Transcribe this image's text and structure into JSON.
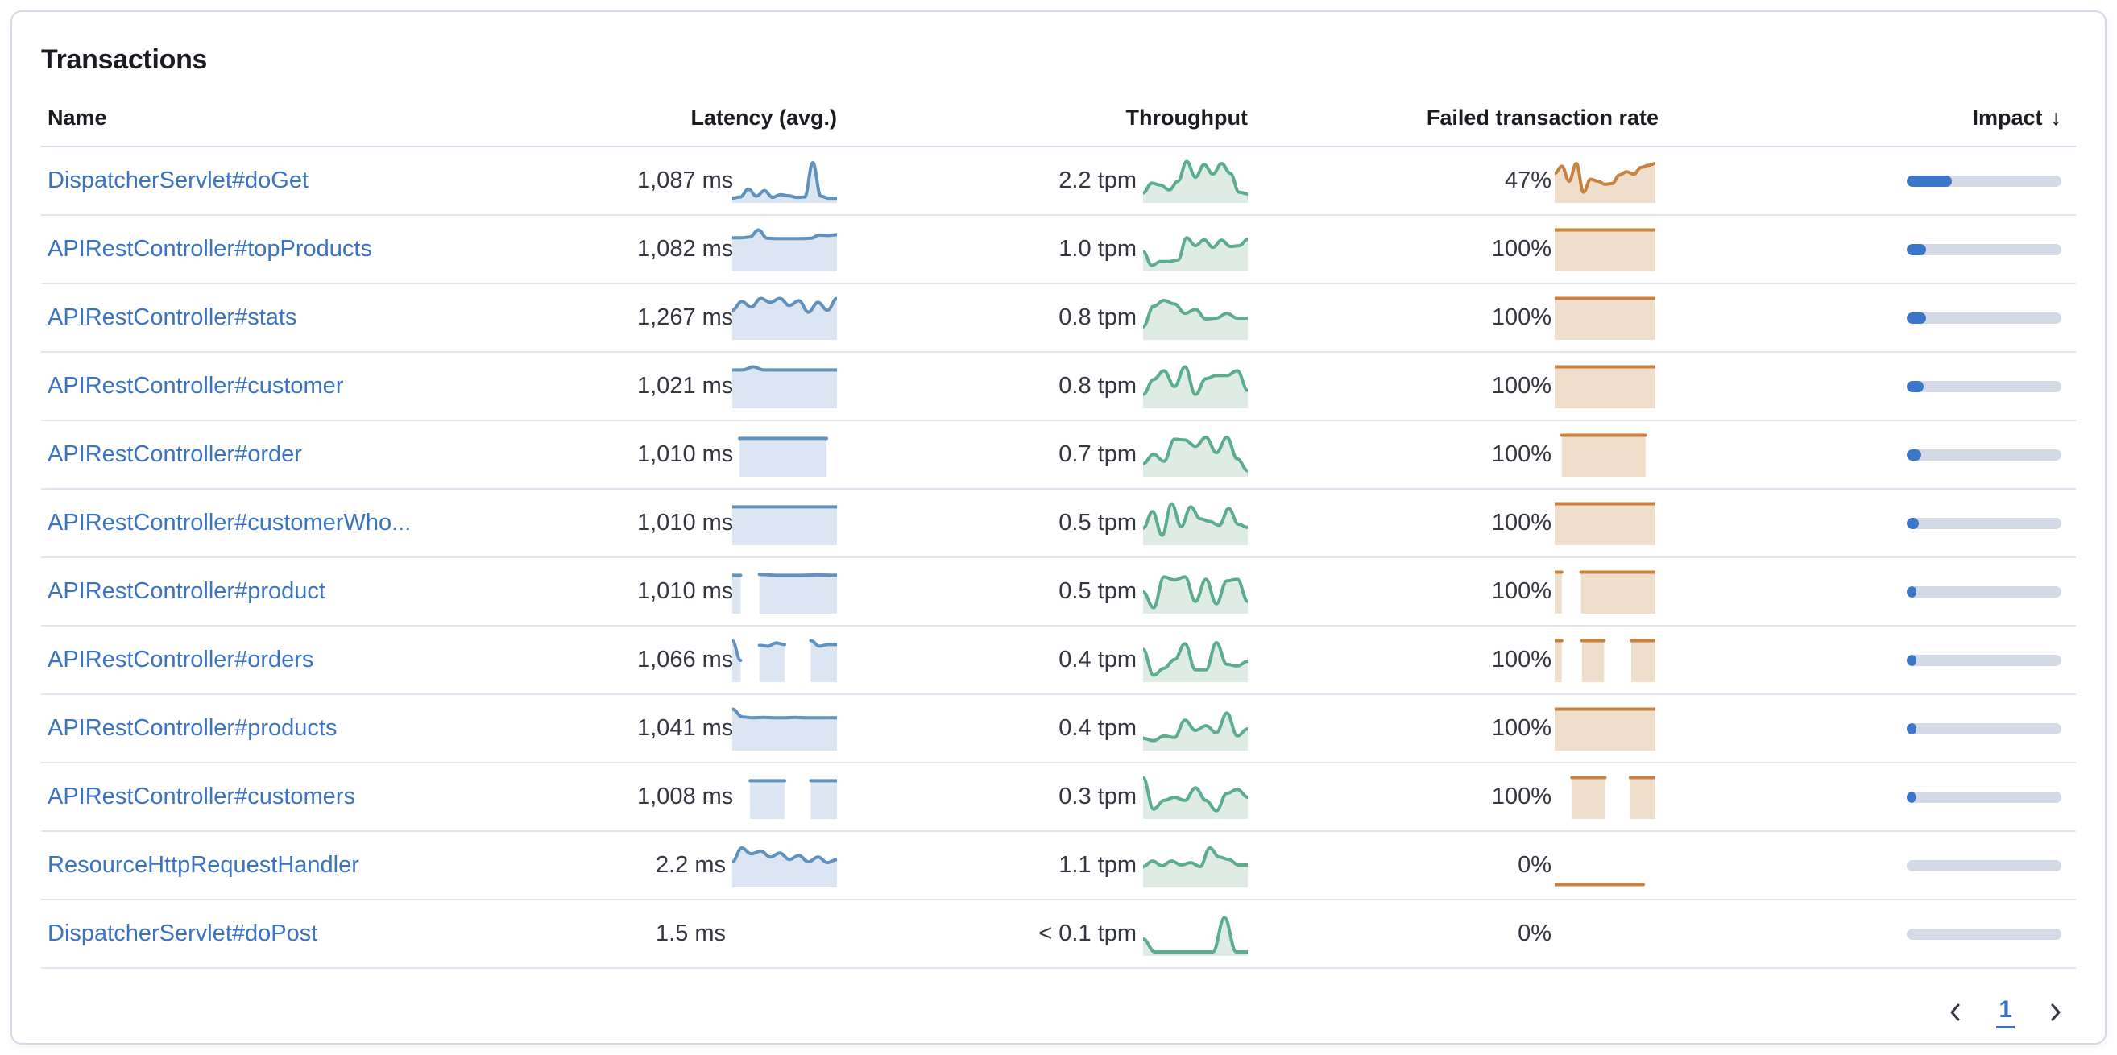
{
  "panel": {
    "title": "Transactions"
  },
  "table": {
    "columns": {
      "name": "Name",
      "latency": "Latency (avg.)",
      "throughput": "Throughput",
      "failed_rate": "Failed transaction rate",
      "impact": "Impact"
    },
    "sort": {
      "column": "Impact",
      "direction": "desc",
      "arrow": "↓"
    },
    "rows": [
      {
        "name": "DispatcherServlet#doGet",
        "latency": "1,087 ms",
        "throughput": "2.2 tpm",
        "failed_rate": "47%",
        "impact_pct": 29,
        "latency_spark": {
          "segments": [
            {
              "x": [
                0,
                1
              ],
              "y": [
                0.07,
                0.1,
                0.3,
                0.12,
                0.26,
                0.09,
                0.16,
                0.13,
                0.09,
                0.1,
                0.97,
                0.12,
                0.07,
                0.07
              ]
            }
          ]
        },
        "throughput_spark": {
          "segments": [
            {
              "x": [
                0,
                1
              ],
              "y": [
                0.2,
                0.45,
                0.4,
                0.28,
                0.5,
                1.0,
                0.6,
                0.92,
                0.68,
                0.95,
                0.7,
                0.22,
                0.18
              ]
            }
          ]
        },
        "failed_spark": {
          "segments": [
            {
              "x": [
                0,
                1
              ],
              "y": [
                0.7,
                0.88,
                0.5,
                0.95,
                0.22,
                0.55,
                0.5,
                0.42,
                0.44,
                0.66,
                0.74,
                0.68,
                0.85,
                0.9,
                0.95
              ]
            }
          ]
        }
      },
      {
        "name": "APIRestController#topProducts",
        "latency": "1,082 ms",
        "throughput": "1.0 tpm",
        "failed_rate": "100%",
        "impact_pct": 12.5,
        "latency_spark": {
          "segments": [
            {
              "x": [
                0,
                1
              ],
              "y": [
                0.8,
                0.8,
                0.82,
                1.0,
                0.79,
                0.78,
                0.78,
                0.78,
                0.78,
                0.79,
                0.87,
                0.86,
                0.88
              ]
            }
          ]
        },
        "throughput_spark": {
          "segments": [
            {
              "x": [
                0,
                1
              ],
              "y": [
                0.45,
                0.1,
                0.2,
                0.2,
                0.24,
                0.8,
                0.6,
                0.75,
                0.56,
                0.74,
                0.58,
                0.6,
                0.76
              ]
            }
          ]
        },
        "failed_spark": {
          "segments": [
            {
              "x": [
                0,
                1
              ],
              "y": [
                1,
                1
              ]
            }
          ]
        }
      },
      {
        "name": "APIRestController#stats",
        "latency": "1,267 ms",
        "throughput": "0.8 tpm",
        "failed_rate": "100%",
        "impact_pct": 12.5,
        "latency_spark": {
          "segments": [
            {
              "x": [
                0,
                1
              ],
              "y": [
                0.7,
                0.92,
                0.78,
                1.0,
                0.9,
                1.0,
                0.82,
                0.94,
                0.65,
                0.9,
                0.7,
                1.0
              ]
            }
          ]
        },
        "throughput_spark": {
          "segments": [
            {
              "x": [
                0,
                1
              ],
              "y": [
                0.28,
                0.8,
                0.95,
                0.86,
                0.62,
                0.72,
                0.48,
                0.5,
                0.62,
                0.5,
                0.5
              ]
            }
          ]
        },
        "failed_spark": {
          "segments": [
            {
              "x": [
                0,
                1
              ],
              "y": [
                1,
                1
              ]
            }
          ]
        }
      },
      {
        "name": "APIRestController#customer",
        "latency": "1,021 ms",
        "throughput": "0.8 tpm",
        "failed_rate": "100%",
        "impact_pct": 11,
        "latency_spark": {
          "segments": [
            {
              "x": [
                0,
                1
              ],
              "y": [
                0.92,
                0.92,
                1.0,
                0.92,
                0.92,
                0.92,
                0.92,
                0.92,
                0.92,
                0.92,
                0.92
              ]
            }
          ]
        },
        "throughput_spark": {
          "segments": [
            {
              "x": [
                0,
                1
              ],
              "y": [
                0.3,
                0.68,
                0.9,
                0.5,
                1.0,
                0.3,
                0.7,
                0.78,
                0.78,
                0.9,
                0.4
              ]
            }
          ]
        },
        "failed_spark": {
          "segments": [
            {
              "x": [
                0,
                1
              ],
              "y": [
                1,
                1
              ]
            }
          ]
        }
      },
      {
        "name": "APIRestController#order",
        "latency": "1,010 ms",
        "throughput": "0.7 tpm",
        "failed_rate": "100%",
        "impact_pct": 9.5,
        "latency_spark": {
          "segments": [
            {
              "x": [
                0.07,
                0.9
              ],
              "y": [
                0.92,
                0.92
              ]
            }
          ]
        },
        "throughput_spark": {
          "segments": [
            {
              "x": [
                0,
                1
              ],
              "y": [
                0.28,
                0.52,
                0.34,
                0.9,
                0.88,
                0.72,
                0.95,
                0.56,
                0.95,
                0.4,
                0.1
              ]
            }
          ]
        },
        "failed_spark": {
          "segments": [
            {
              "x": [
                0.07,
                0.9
              ],
              "y": [
                1,
                1
              ]
            }
          ]
        }
      },
      {
        "name": "APIRestController#customerWho...",
        "latency": "1,010 ms",
        "throughput": "0.5 tpm",
        "failed_rate": "100%",
        "impact_pct": 8,
        "latency_spark": {
          "segments": [
            {
              "x": [
                0,
                1
              ],
              "y": [
                0.92,
                0.92
              ]
            }
          ]
        },
        "throughput_spark": {
          "segments": [
            {
              "x": [
                0,
                1
              ],
              "y": [
                0.38,
                0.8,
                0.2,
                1.0,
                0.42,
                0.92,
                0.62,
                0.55,
                0.45,
                0.88,
                0.48,
                0.4
              ]
            }
          ]
        },
        "failed_spark": {
          "segments": [
            {
              "x": [
                0,
                1
              ],
              "y": [
                1,
                1
              ]
            }
          ]
        }
      },
      {
        "name": "APIRestController#product",
        "latency": "1,010 ms",
        "throughput": "0.5 tpm",
        "failed_rate": "100%",
        "impact_pct": 6.5,
        "latency_spark": {
          "segments": [
            {
              "x": [
                0,
                0.08
              ],
              "y": [
                0.92,
                0.92
              ]
            },
            {
              "x": [
                0.26,
                1
              ],
              "y": [
                0.94,
                0.92,
                0.92,
                0.93,
                0.92
              ]
            }
          ]
        },
        "throughput_spark": {
          "segments": [
            {
              "x": [
                0,
                1
              ],
              "y": [
                0.5,
                0.1,
                0.88,
                0.8,
                0.88,
                0.26,
                0.82,
                0.2,
                0.78,
                0.82,
                0.26
              ]
            }
          ]
        },
        "failed_spark": {
          "segments": [
            {
              "x": [
                0,
                0.07
              ],
              "y": [
                1,
                1
              ]
            },
            {
              "x": [
                0.26,
                1
              ],
              "y": [
                1,
                1
              ]
            }
          ]
        }
      },
      {
        "name": "APIRestController#orders",
        "latency": "1,066 ms",
        "throughput": "0.4 tpm",
        "failed_rate": "100%",
        "impact_pct": 6,
        "latency_spark": {
          "segments": [
            {
              "x": [
                0,
                0.08
              ],
              "y": [
                1.0,
                0.5
              ]
            },
            {
              "x": [
                0.26,
                0.5
              ],
              "y": [
                0.88,
                0.86,
                0.94,
                0.9
              ]
            },
            {
              "x": [
                0.75,
                1
              ],
              "y": [
                1.0,
                0.86,
                0.9,
                0.9
              ]
            }
          ]
        },
        "throughput_spark": {
          "segments": [
            {
              "x": [
                0,
                1
              ],
              "y": [
                0.78,
                0.12,
                0.3,
                0.52,
                0.92,
                0.26,
                0.26,
                0.95,
                0.4,
                0.36,
                0.48
              ]
            }
          ]
        },
        "failed_spark": {
          "segments": [
            {
              "x": [
                0,
                0.07
              ],
              "y": [
                1,
                1
              ]
            },
            {
              "x": [
                0.27,
                0.49
              ],
              "y": [
                1,
                1
              ]
            },
            {
              "x": [
                0.76,
                1
              ],
              "y": [
                1,
                1
              ]
            }
          ]
        }
      },
      {
        "name": "APIRestController#products",
        "latency": "1,041 ms",
        "throughput": "0.4 tpm",
        "failed_rate": "100%",
        "impact_pct": 6,
        "latency_spark": {
          "segments": [
            {
              "x": [
                0,
                1
              ],
              "y": [
                1.0,
                0.8,
                0.78,
                0.79,
                0.78,
                0.78,
                0.79,
                0.78,
                0.78,
                0.78,
                0.78
              ]
            }
          ]
        },
        "throughput_spark": {
          "segments": [
            {
              "x": [
                0,
                1
              ],
              "y": [
                0.26,
                0.2,
                0.32,
                0.28,
                0.72,
                0.46,
                0.58,
                0.4,
                0.9,
                0.32,
                0.5
              ]
            }
          ]
        },
        "failed_spark": {
          "segments": [
            {
              "x": [
                0,
                1
              ],
              "y": [
                1,
                1
              ]
            }
          ]
        }
      },
      {
        "name": "APIRestController#customers",
        "latency": "1,008 ms",
        "throughput": "0.3 tpm",
        "failed_rate": "100%",
        "impact_pct": 5.5,
        "latency_spark": {
          "segments": [
            {
              "x": [
                0.17,
                0.5
              ],
              "y": [
                0.92,
                0.92
              ]
            },
            {
              "x": [
                0.75,
                1
              ],
              "y": [
                0.92,
                0.92
              ]
            }
          ]
        },
        "throughput_spark": {
          "segments": [
            {
              "x": [
                0,
                1
              ],
              "y": [
                1.0,
                0.2,
                0.42,
                0.5,
                0.42,
                0.74,
                0.42,
                0.16,
                0.6,
                0.7,
                0.5
              ]
            }
          ]
        },
        "failed_spark": {
          "segments": [
            {
              "x": [
                0.17,
                0.5
              ],
              "y": [
                1,
                1
              ]
            },
            {
              "x": [
                0.75,
                1
              ],
              "y": [
                1,
                1
              ]
            }
          ]
        }
      },
      {
        "name": "ResourceHttpRequestHandler",
        "latency": "2.2 ms",
        "throughput": "1.1 tpm",
        "failed_rate": "0%",
        "impact_pct": 0,
        "latency_spark": {
          "segments": [
            {
              "x": [
                0,
                1
              ],
              "y": [
                0.6,
                0.95,
                0.8,
                0.87,
                0.72,
                0.82,
                0.66,
                0.76,
                0.6,
                0.72,
                0.58,
                0.66
              ]
            }
          ]
        },
        "throughput_spark": {
          "segments": [
            {
              "x": [
                0,
                1
              ],
              "y": [
                0.48,
                0.62,
                0.5,
                0.62,
                0.52,
                0.58,
                0.48,
                0.95,
                0.72,
                0.66,
                0.52,
                0.52
              ]
            }
          ]
        },
        "failed_spark": {
          "segments": [
            {
              "x": [
                0,
                0.88
              ],
              "y": [
                0.02,
                0.02
              ],
              "fill": false
            }
          ]
        }
      },
      {
        "name": "DispatcherServlet#doPost",
        "latency": "1.5 ms",
        "throughput": "< 0.1 tpm",
        "failed_rate": "0%",
        "impact_pct": 0,
        "latency_spark": {
          "segments": []
        },
        "throughput_spark": {
          "segments": [
            {
              "x": [
                0,
                1
              ],
              "y": [
                0.38,
                0.05,
                0.05,
                0.05,
                0.05,
                0.05,
                0.05,
                0.92,
                0.05,
                0.05
              ]
            }
          ]
        },
        "failed_spark": {
          "segments": []
        }
      }
    ]
  },
  "pagination": {
    "current_page": "1"
  },
  "colors": {
    "link": "#3b73c3",
    "latency_spark": {
      "stroke": "#6092C0",
      "fill": "#DCE5F2"
    },
    "throughput_spark": {
      "stroke": "#5CAD8F",
      "fill": "#DFECE5"
    },
    "failed_spark": {
      "stroke": "#C8823E",
      "fill": "#F0DECD"
    },
    "impact": {
      "fill": "#3B77C8",
      "track": "#D3DAE6"
    }
  }
}
